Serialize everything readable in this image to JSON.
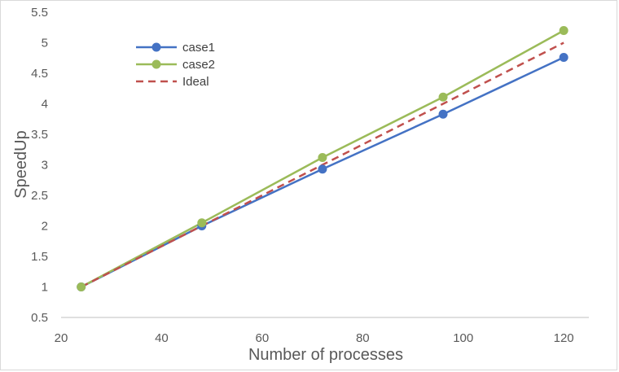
{
  "chart_data": {
    "type": "line",
    "title": "",
    "xlabel": "Number of processes",
    "ylabel": "SpeedUp",
    "xlim": [
      20,
      125
    ],
    "ylim": [
      0.5,
      5.5
    ],
    "x_ticks": [
      "20",
      "40",
      "60",
      "80",
      "100",
      "120"
    ],
    "y_ticks": [
      "0.5",
      "1",
      "1.5",
      "2",
      "2.5",
      "3",
      "3.5",
      "4",
      "4.5",
      "5",
      "5.5"
    ],
    "grid": false,
    "legend_position": "top-left",
    "x": [
      24,
      48,
      72,
      96,
      120
    ],
    "series": [
      {
        "name": "case1",
        "values": [
          1.0,
          2.0,
          2.93,
          3.83,
          4.76
        ],
        "color": "#4472c4",
        "style": "solid",
        "markers": true
      },
      {
        "name": "case2",
        "values": [
          1.0,
          2.05,
          3.12,
          4.11,
          5.2
        ],
        "color": "#9bbb59",
        "style": "solid",
        "markers": true
      },
      {
        "name": "Ideal",
        "values": [
          1.0,
          2.0,
          3.0,
          4.0,
          5.0
        ],
        "color": "#c0504d",
        "style": "dashed",
        "markers": false
      }
    ]
  }
}
